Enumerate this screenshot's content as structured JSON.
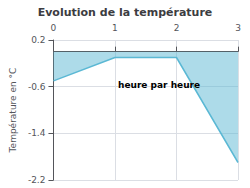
{
  "chart_data": {
    "type": "area",
    "title": "Evolution de la température",
    "ylabel": "Température en °C",
    "annotations": [
      "heure par heure"
    ],
    "x": [
      0,
      1,
      2,
      3
    ],
    "values": [
      -0.5,
      -0.1,
      -0.1,
      -1.9
    ],
    "color": "#5bb8d4",
    "xlim": [
      0,
      3
    ],
    "xticks": [
      0,
      1,
      2,
      3
    ],
    "ylim": [
      -2.2,
      0.2
    ],
    "yticks": [
      0.2,
      -0.6,
      -1.4,
      -2.2
    ],
    "grid": true
  }
}
